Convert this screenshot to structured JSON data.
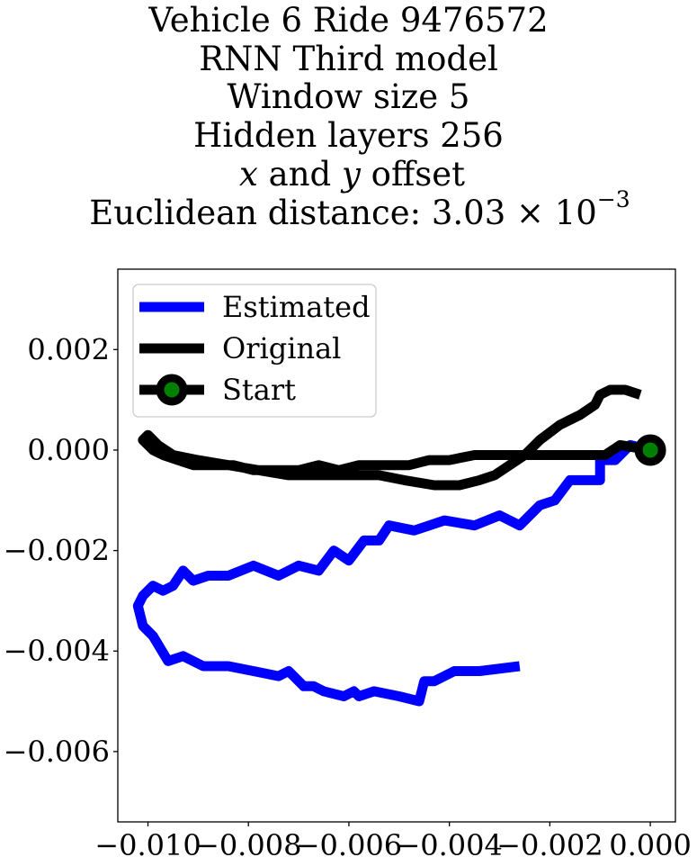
{
  "chart_data": {
    "type": "line",
    "title_lines": {
      "line1": "Vehicle 6 Ride 9476572",
      "line2": "RNN Third model",
      "line3": "Window size 5",
      "line4": "Hidden layers 256",
      "line5_x": "x",
      "line5_and": " and ",
      "line5_y": "y",
      "line5_rest": " offset",
      "line6_prefix": "Euclidean distance: 3.03",
      "line6_times": " × 10",
      "line6_exp": "−3"
    },
    "xlim": [
      -0.0106,
      0.0005
    ],
    "ylim": [
      -0.0074,
      0.0036
    ],
    "xticks": [
      {
        "value": -0.01,
        "label": "−0.010"
      },
      {
        "value": -0.008,
        "label": "−0.008"
      },
      {
        "value": -0.006,
        "label": "−0.006"
      },
      {
        "value": -0.004,
        "label": "−0.004"
      },
      {
        "value": -0.002,
        "label": "−0.002"
      },
      {
        "value": 0.0,
        "label": "0.000"
      }
    ],
    "yticks": [
      {
        "value": 0.002,
        "label": "0.002"
      },
      {
        "value": 0.0,
        "label": "0.000"
      },
      {
        "value": -0.002,
        "label": "−0.002"
      },
      {
        "value": -0.004,
        "label": "−0.004"
      },
      {
        "value": -0.006,
        "label": "−0.006"
      }
    ],
    "grid": false,
    "legend": {
      "placement": "top-left",
      "entries": [
        {
          "label": "Estimated",
          "color": "#0000ff",
          "marker": false
        },
        {
          "label": "Original",
          "color": "#000000",
          "marker": false
        },
        {
          "label": "Start",
          "color": "#000000",
          "marker": true,
          "marker_face": "#008000"
        }
      ]
    },
    "series": [
      {
        "name": "Estimated",
        "color": "#0000ff",
        "points": [
          [
            0.0,
            0.0
          ],
          [
            -0.0004,
            0.0001
          ],
          [
            -0.0007,
            -0.0002
          ],
          [
            -0.001,
            -0.0002
          ],
          [
            -0.001,
            -0.0006
          ],
          [
            -0.0016,
            -0.0006
          ],
          [
            -0.0019,
            -0.001
          ],
          [
            -0.0022,
            -0.0011
          ],
          [
            -0.0026,
            -0.0015
          ],
          [
            -0.003,
            -0.0013
          ],
          [
            -0.0035,
            -0.0015
          ],
          [
            -0.0041,
            -0.0014
          ],
          [
            -0.0047,
            -0.0016
          ],
          [
            -0.0052,
            -0.0015
          ],
          [
            -0.0054,
            -0.0018
          ],
          [
            -0.0057,
            -0.0018
          ],
          [
            -0.006,
            -0.0022
          ],
          [
            -0.0063,
            -0.002
          ],
          [
            -0.0066,
            -0.0024
          ],
          [
            -0.007,
            -0.0023
          ],
          [
            -0.0074,
            -0.0025
          ],
          [
            -0.0079,
            -0.0023
          ],
          [
            -0.0084,
            -0.0025
          ],
          [
            -0.0088,
            -0.0025
          ],
          [
            -0.0091,
            -0.0026
          ],
          [
            -0.0093,
            -0.0024
          ],
          [
            -0.0095,
            -0.0027
          ],
          [
            -0.0097,
            -0.0028
          ],
          [
            -0.0099,
            -0.0027
          ],
          [
            -0.0101,
            -0.0029
          ],
          [
            -0.0102,
            -0.0031
          ],
          [
            -0.0101,
            -0.0035
          ],
          [
            -0.0099,
            -0.0037
          ],
          [
            -0.0096,
            -0.0042
          ],
          [
            -0.0093,
            -0.0041
          ],
          [
            -0.0089,
            -0.0043
          ],
          [
            -0.0084,
            -0.0043
          ],
          [
            -0.0079,
            -0.0044
          ],
          [
            -0.0074,
            -0.0045
          ],
          [
            -0.0072,
            -0.0044
          ],
          [
            -0.0069,
            -0.0047
          ],
          [
            -0.0067,
            -0.0047
          ],
          [
            -0.0065,
            -0.0048
          ],
          [
            -0.0061,
            -0.0049
          ],
          [
            -0.0059,
            -0.0048
          ],
          [
            -0.0058,
            -0.0049
          ],
          [
            -0.0055,
            -0.0048
          ],
          [
            -0.005,
            -0.0049
          ],
          [
            -0.0046,
            -0.005
          ],
          [
            -0.0045,
            -0.0046
          ],
          [
            -0.0043,
            -0.0046
          ],
          [
            -0.0039,
            -0.0044
          ],
          [
            -0.0034,
            -0.0044
          ],
          [
            -0.0026,
            -0.0043
          ]
        ]
      },
      {
        "name": "Original",
        "color": "#000000",
        "points": [
          [
            0.0,
            0.0
          ],
          [
            -0.0006,
            0.0001
          ],
          [
            -0.0009,
            -0.0001
          ],
          [
            -0.0012,
            -0.0001
          ],
          [
            -0.0016,
            -0.0001
          ],
          [
            -0.002,
            -0.0001
          ],
          [
            -0.0025,
            -0.0001
          ],
          [
            -0.003,
            -0.0001
          ],
          [
            -0.0035,
            -0.0001
          ],
          [
            -0.004,
            -0.0002
          ],
          [
            -0.0044,
            -0.0002
          ],
          [
            -0.0048,
            -0.0003
          ],
          [
            -0.0052,
            -0.0003
          ],
          [
            -0.0058,
            -0.0003
          ],
          [
            -0.0062,
            -0.0004
          ],
          [
            -0.0066,
            -0.0003
          ],
          [
            -0.007,
            -0.0004
          ],
          [
            -0.0075,
            -0.0004
          ],
          [
            -0.0079,
            -0.0004
          ],
          [
            -0.0083,
            -0.0003
          ],
          [
            -0.0087,
            -0.0003
          ],
          [
            -0.0091,
            -0.0003
          ],
          [
            -0.0094,
            -0.0002
          ],
          [
            -0.0097,
            -0.0001
          ],
          [
            -0.0099,
            0.0
          ],
          [
            -0.0101,
            0.0002
          ],
          [
            -0.01,
            0.0003
          ],
          [
            -0.0098,
            0.0001
          ],
          [
            -0.0095,
            -0.0001
          ],
          [
            -0.009,
            -0.0002
          ],
          [
            -0.0084,
            -0.0003
          ],
          [
            -0.0078,
            -0.0004
          ],
          [
            -0.0072,
            -0.0005
          ],
          [
            -0.0066,
            -0.0005
          ],
          [
            -0.006,
            -0.0005
          ],
          [
            -0.0054,
            -0.0005
          ],
          [
            -0.0049,
            -0.0006
          ],
          [
            -0.0043,
            -0.0007
          ],
          [
            -0.0038,
            -0.0007
          ],
          [
            -0.0034,
            -0.0006
          ],
          [
            -0.0031,
            -0.0005
          ],
          [
            -0.0028,
            -0.0003
          ],
          [
            -0.0025,
            -0.0001
          ],
          [
            -0.0022,
            0.0002
          ],
          [
            -0.0018,
            0.0005
          ],
          [
            -0.0014,
            0.0007
          ],
          [
            -0.0011,
            0.0009
          ],
          [
            -0.001,
            0.0011
          ],
          [
            -0.0008,
            0.0012
          ],
          [
            -0.0005,
            0.0012
          ],
          [
            -0.0002,
            0.0011
          ]
        ]
      }
    ],
    "start_point": [
      0.0,
      0.0
    ],
    "start_marker_face": "#008000"
  }
}
